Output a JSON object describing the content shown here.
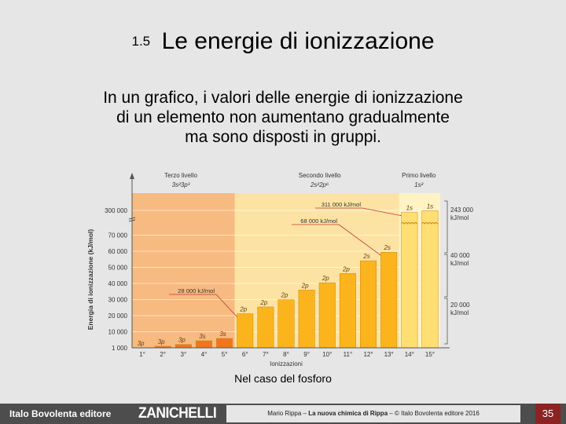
{
  "slide": {
    "section_number": "1.5",
    "title": "Le energie di ionizzazione",
    "intro_lines": [
      "In un grafico, i valori delle energie di ionizzazione",
      "di un elemento non aumentano gradualmente",
      "ma sono disposti in gruppi."
    ],
    "caption": "Nel caso del fosforo",
    "page_number": "35"
  },
  "footer": {
    "publisher": "Italo Bovolenta editore",
    "brand": "ZANICHELLI",
    "credit_author": "Mario Rippa – ",
    "credit_book": "La nuova chimica di Rippa",
    "credit_rest": " – © Italo Bovolenta editore 2016"
  },
  "colors": {
    "background": "#e7e6e6",
    "level3_band": "#f7ba80",
    "level2_band": "#fde3a3",
    "level1_band": "#fff3c4",
    "bar_level3": "#f0761e",
    "bar_level2": "#fbb41b",
    "bar_level1": "#ffdf73",
    "footer_bar": "#4d4d4d",
    "page_badge": "#8b2323"
  },
  "chart_data": {
    "type": "bar",
    "xlabel": "Ionizzazioni",
    "ylabel": "Energia di ionizzazione (kJ/mol)",
    "y_tick_labels": [
      "1 000",
      "10 000",
      "20 000",
      "30 000",
      "40 000",
      "50 000",
      "60 000",
      "70 000",
      "300 000"
    ],
    "y_axis_break_between": [
      "70 000",
      "300 000"
    ],
    "categories": [
      "1°",
      "2°",
      "3°",
      "4°",
      "5°",
      "6°",
      "7°",
      "8°",
      "9°",
      "10°",
      "11°",
      "12°",
      "13°",
      "14°",
      "15°"
    ],
    "orbitals": [
      "3p",
      "3p",
      "3p",
      "3s",
      "3s",
      "2p",
      "2p",
      "2p",
      "2p",
      "2p",
      "2p",
      "2s",
      "2s",
      "1s",
      "1s"
    ],
    "values": [
      1012,
      1900,
      2900,
      4960,
      6270,
      21200,
      25400,
      29900,
      35900,
      40400,
      46200,
      54100,
      59400,
      271800,
      296000
    ],
    "levels": [
      {
        "name": "Terzo livello",
        "config": "3s²3p³",
        "from": 1,
        "to": 5
      },
      {
        "name": "Secondo livello",
        "config": "2s²2p⁶",
        "from": 6,
        "to": 13
      },
      {
        "name": "Primo livello",
        "config": "1s²",
        "from": 14,
        "to": 15
      }
    ],
    "annotations": [
      {
        "text": "311 000 kJ/mol",
        "at": 14
      },
      {
        "text": "68 000 kJ/mol",
        "at": 13
      },
      {
        "text": "28 000 kJ/mol",
        "at": 6
      }
    ],
    "gap_labels": [
      {
        "value": "243 000",
        "unit": "kJ/mol"
      },
      {
        "value": "40 000",
        "unit": "kJ/mol"
      },
      {
        "value": "20 000",
        "unit": "kJ/mol"
      }
    ],
    "grid": true,
    "legend": "none"
  }
}
